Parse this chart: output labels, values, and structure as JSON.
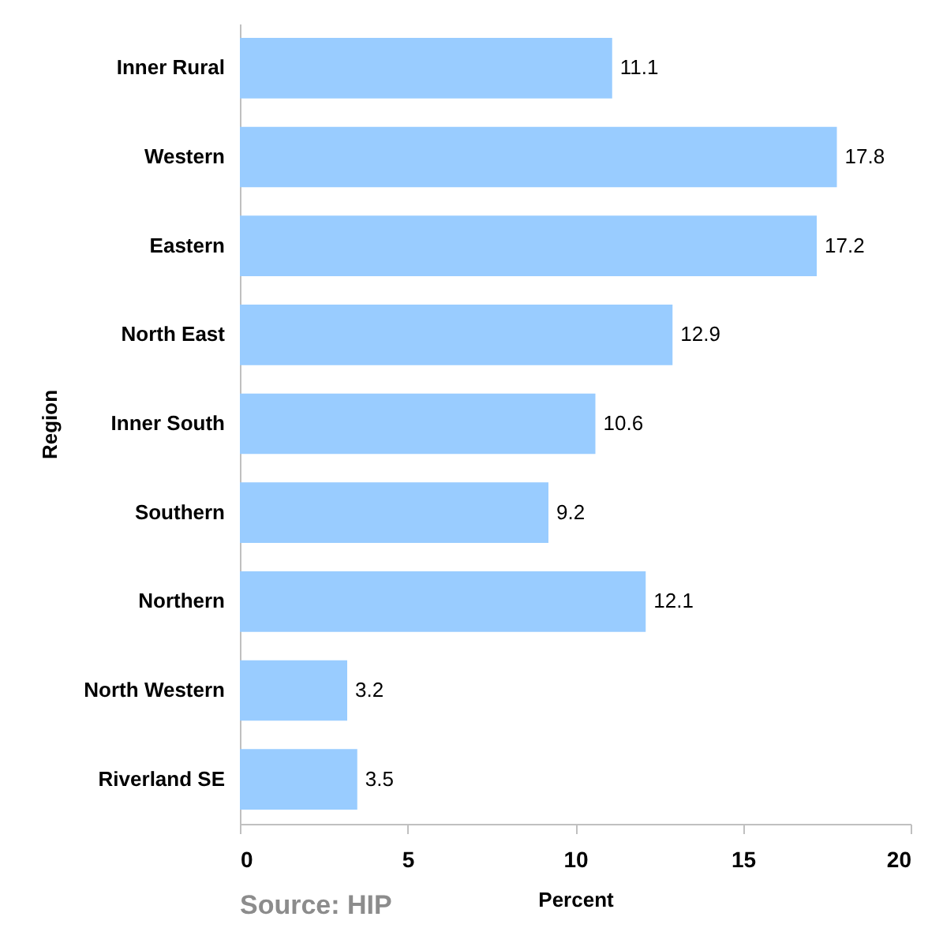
{
  "chart_data": {
    "type": "bar",
    "orientation": "horizontal",
    "ylabel": "Region",
    "xlabel": "Percent",
    "categories": [
      "Inner Rural",
      "Western",
      "Eastern",
      "North East",
      "Inner South",
      "Southern",
      "Northern",
      "North Western",
      "Riverland SE"
    ],
    "values": [
      11.1,
      17.8,
      17.2,
      12.9,
      10.6,
      9.2,
      12.1,
      3.2,
      3.5
    ],
    "color": "#99ccff",
    "data_labels": true,
    "xlim": [
      0,
      20
    ],
    "xticks": [
      0,
      5,
      10,
      15,
      20
    ],
    "grid": false,
    "annotations": [
      "Source: HIP"
    ]
  }
}
